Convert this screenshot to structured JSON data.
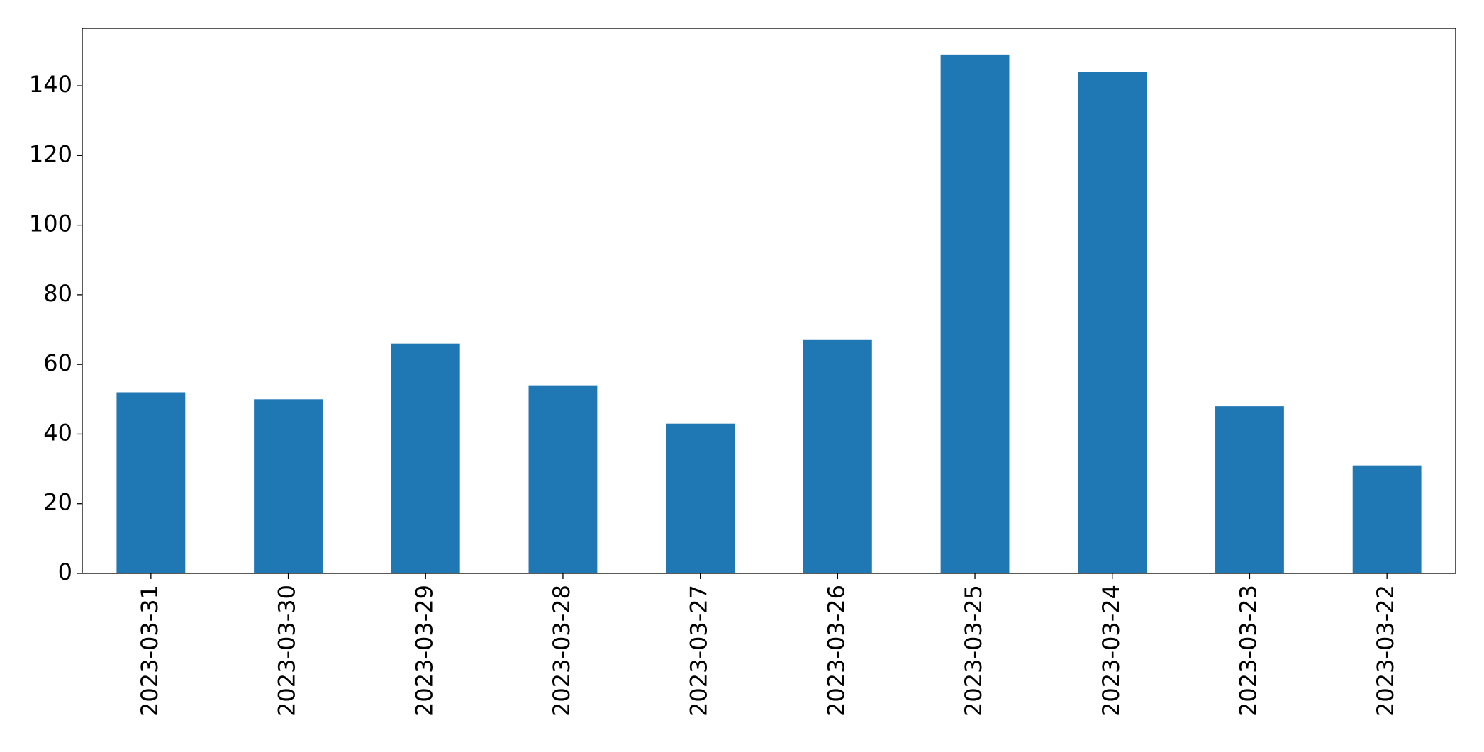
{
  "chart_data": {
    "type": "bar",
    "categories": [
      "2023-03-31",
      "2023-03-30",
      "2023-03-29",
      "2023-03-28",
      "2023-03-27",
      "2023-03-26",
      "2023-03-25",
      "2023-03-24",
      "2023-03-23",
      "2023-03-22"
    ],
    "values": [
      52,
      50,
      66,
      54,
      43,
      67,
      149,
      144,
      48,
      31
    ],
    "color": "#1f77b4",
    "ylim": [
      0,
      156.5
    ],
    "yticks": [
      0,
      20,
      40,
      60,
      80,
      100,
      120,
      140
    ],
    "grid": false
  }
}
